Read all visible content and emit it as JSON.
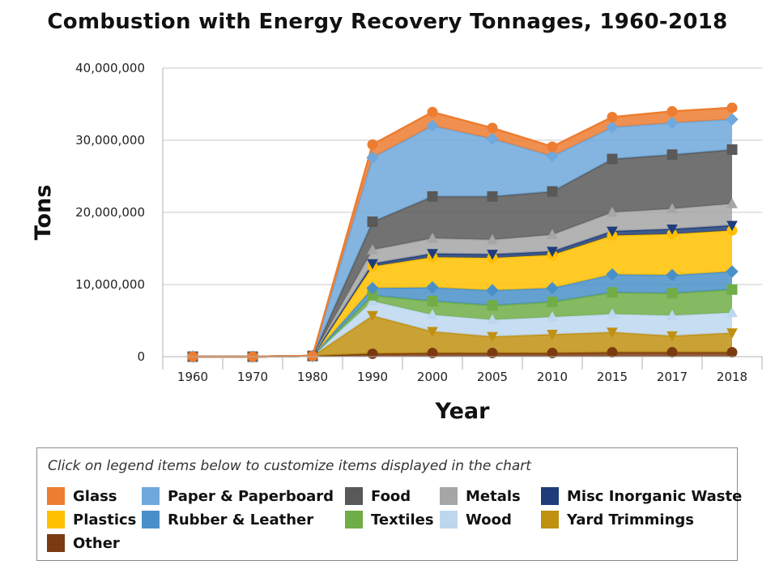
{
  "chart_data": {
    "type": "area",
    "stacked": true,
    "title": "Combustion with Energy Recovery Tonnages, 1960-2018",
    "xlabel": "Year",
    "ylabel": "Tons",
    "ylim": [
      0,
      40000000
    ],
    "yticks": [
      "0",
      "10,000,000",
      "20,000,000",
      "30,000,000",
      "40,000,000"
    ],
    "ytick_values": [
      0,
      10000000,
      20000000,
      30000000,
      40000000
    ],
    "categories": [
      "1960",
      "1970",
      "1980",
      "1990",
      "2000",
      "2005",
      "2010",
      "2015",
      "2017",
      "2018"
    ],
    "grid": true,
    "legend_hint": "Click on legend items below to customize items displayed in the chart",
    "series": [
      {
        "name": "Other",
        "color": "#7b3a10",
        "marker": "circle",
        "values": [
          0,
          0,
          100000,
          400000,
          500000,
          500000,
          500000,
          600000,
          600000,
          600000
        ]
      },
      {
        "name": "Yard Trimmings",
        "color": "#c09010",
        "marker": "triangle-down",
        "values": [
          0,
          0,
          0,
          5300000,
          3000000,
          2300000,
          2600000,
          2800000,
          2300000,
          2700000
        ]
      },
      {
        "name": "Wood",
        "color": "#bdd7ee",
        "marker": "triangle-up",
        "values": [
          0,
          0,
          0,
          2000000,
          2300000,
          2300000,
          2400000,
          2500000,
          2800000,
          2800000
        ]
      },
      {
        "name": "Textiles",
        "color": "#70ad47",
        "marker": "square",
        "values": [
          0,
          0,
          0,
          800000,
          1900000,
          2000000,
          2100000,
          3000000,
          3100000,
          3200000
        ]
      },
      {
        "name": "Rubber & Leather",
        "color": "#4a90c8",
        "marker": "diamond",
        "values": [
          0,
          0,
          0,
          1000000,
          1900000,
          2100000,
          1900000,
          2500000,
          2500000,
          2500000
        ]
      },
      {
        "name": "Plastics",
        "color": "#ffc000",
        "marker": "circle",
        "values": [
          0,
          0,
          0,
          3000000,
          4200000,
          4500000,
          4600000,
          5400000,
          5700000,
          5700000
        ]
      },
      {
        "name": "Misc Inorganic Waste",
        "color": "#1f3d7a",
        "marker": "triangle-down",
        "values": [
          0,
          0,
          0,
          400000,
          500000,
          500000,
          500000,
          600000,
          700000,
          700000
        ]
      },
      {
        "name": "Metals",
        "color": "#a6a6a6",
        "marker": "triangle-up",
        "values": [
          0,
          0,
          0,
          1900000,
          2100000,
          2000000,
          2300000,
          2600000,
          2800000,
          3000000
        ]
      },
      {
        "name": "Food",
        "color": "#595959",
        "marker": "square",
        "values": [
          0,
          0,
          0,
          3900000,
          5800000,
          6000000,
          6000000,
          7400000,
          7500000,
          7500000
        ]
      },
      {
        "name": "Paper & Paperboard",
        "color": "#6fa8dc",
        "marker": "diamond",
        "values": [
          0,
          0,
          0,
          8900000,
          9800000,
          8000000,
          4900000,
          4400000,
          4400000,
          4200000
        ]
      },
      {
        "name": "Glass",
        "color": "#ed7d31",
        "marker": "circle",
        "values": [
          0,
          0,
          0,
          1800000,
          1900000,
          1500000,
          1300000,
          1400000,
          1600000,
          1600000
        ]
      }
    ],
    "legend_order": [
      "Glass",
      "Paper & Paperboard",
      "Food",
      "Metals",
      "Misc Inorganic Waste",
      "Plastics",
      "Rubber & Leather",
      "Textiles",
      "Wood",
      "Yard Trimmings",
      "Other"
    ],
    "legend_position": "bottom"
  }
}
